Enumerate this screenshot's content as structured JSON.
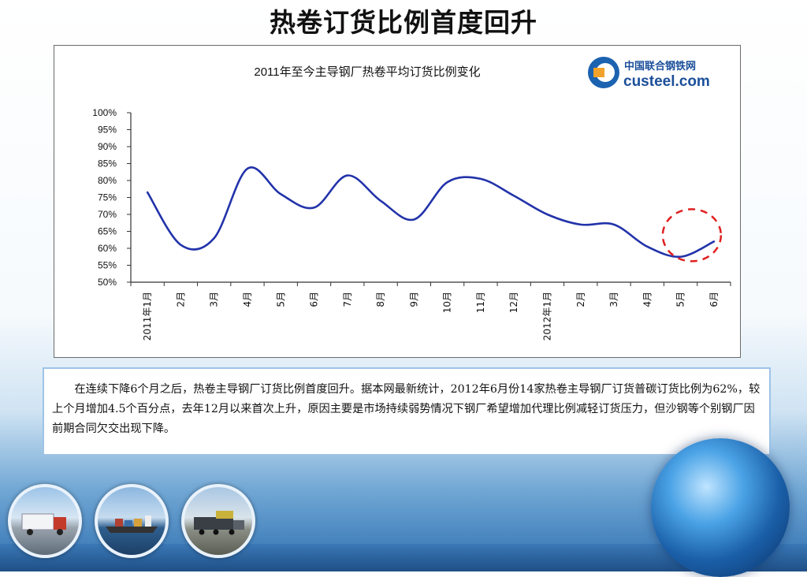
{
  "slide": {
    "title": "热卷订货比例首度回升",
    "caption": "在连续下降6个月之后，热卷主导钢厂订货比例首度回升。据本网最新统计，2012年6月份14家热卷主导钢厂订货普碳订货比例为62%，较上个月增加4.5个百分点，去年12月以来首次上升，原因主要是市场持续弱势情况下钢厂希望增加代理比例减轻订货压力，但沙钢等个别钢厂因前期合同欠交出现下降。"
  },
  "logo": {
    "line1": "中国联合钢铁网",
    "line2": "custeel.com"
  },
  "chart_data": {
    "type": "line",
    "title": "2011年至今主导钢厂热卷平均订货比例变化",
    "xlabel": "",
    "ylabel": "",
    "categories": [
      "2011年1月",
      "2月",
      "3月",
      "4月",
      "5月",
      "6月",
      "7月",
      "8月",
      "9月",
      "10月",
      "11月",
      "12月",
      "2012年1月",
      "2月",
      "3月",
      "4月",
      "5月",
      "6月"
    ],
    "y_ticks": [
      "100%",
      "95%",
      "90%",
      "85%",
      "80%",
      "75%",
      "70%",
      "65%",
      "60%",
      "55%",
      "50%"
    ],
    "ylim": [
      50,
      100
    ],
    "grid": false,
    "series": [
      {
        "color": "#2233aa",
        "values": [
          76.5,
          61,
          63,
          83.5,
          76,
          72,
          81.5,
          74,
          68.5,
          79.5,
          80.5,
          75.5,
          70,
          67,
          67,
          60.5,
          57.5,
          62
        ]
      }
    ],
    "annotation": {
      "type": "dashed-circle",
      "color": "#e02020",
      "target_index": 17
    }
  }
}
